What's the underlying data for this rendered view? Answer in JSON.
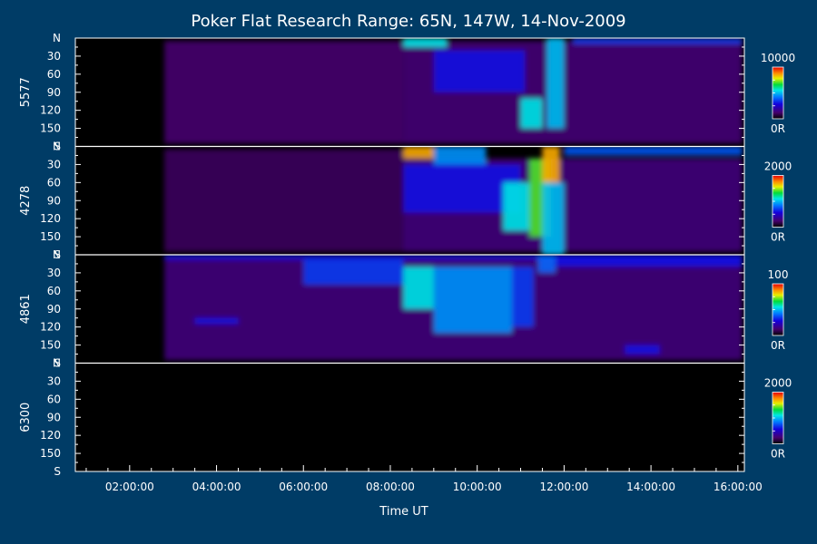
{
  "chart_data": {
    "type": "heatmap",
    "title": "Poker Flat Research Range: 65N, 147W, 14-Nov-2009",
    "xlabel": "Time UT",
    "xlim_hours": [
      0.75,
      16.15
    ],
    "x_ticks": [
      {
        "value": 2,
        "label": "02:00:00"
      },
      {
        "value": 4,
        "label": "04:00:00"
      },
      {
        "value": 6,
        "label": "06:00:00"
      },
      {
        "value": 8,
        "label": "08:00:00"
      },
      {
        "value": 10,
        "label": "10:00:00"
      },
      {
        "value": 12,
        "label": "12:00:00"
      },
      {
        "value": 14,
        "label": "14:00:00"
      },
      {
        "value": 16,
        "label": "16:00:00"
      }
    ],
    "y_ticks": [
      "N",
      "30",
      "60",
      "90",
      "120",
      "150",
      "S"
    ],
    "colorbar_min_label": "0R",
    "panels": [
      {
        "wavelength": "5577",
        "colorbar_max": "10000",
        "blobs": [
          {
            "t0": 2.8,
            "t1": 8.3,
            "y0": 5,
            "y1": 175,
            "i": 0.12
          },
          {
            "t0": 8.3,
            "t1": 16.1,
            "y0": 5,
            "y1": 175,
            "i": 0.13
          },
          {
            "t0": 8.3,
            "t1": 9.3,
            "y0": 0,
            "y1": 15,
            "i": 0.55
          },
          {
            "t0": 9.0,
            "t1": 11.1,
            "y0": 20,
            "y1": 90,
            "i": 0.3
          },
          {
            "t0": 11.0,
            "t1": 11.5,
            "y0": 100,
            "y1": 150,
            "i": 0.55
          },
          {
            "t0": 11.6,
            "t1": 12.0,
            "y0": 0,
            "y1": 150,
            "i": 0.5
          },
          {
            "t0": 12.2,
            "t1": 16.1,
            "y0": 0,
            "y1": 10,
            "i": 0.35
          }
        ]
      },
      {
        "wavelength": "4278",
        "colorbar_max": "2000",
        "blobs": [
          {
            "t0": 2.8,
            "t1": 8.3,
            "y0": 5,
            "y1": 175,
            "i": 0.1
          },
          {
            "t0": 8.3,
            "t1": 16.1,
            "y0": 20,
            "y1": 175,
            "i": 0.14
          },
          {
            "t0": 8.3,
            "t1": 9.0,
            "y0": 0,
            "y1": 20,
            "i": 0.85
          },
          {
            "t0": 9.0,
            "t1": 10.2,
            "y0": 0,
            "y1": 30,
            "i": 0.45
          },
          {
            "t0": 8.3,
            "t1": 11.0,
            "y0": 30,
            "y1": 110,
            "i": 0.3
          },
          {
            "t0": 10.6,
            "t1": 11.2,
            "y0": 60,
            "y1": 140,
            "i": 0.55
          },
          {
            "t0": 11.2,
            "t1": 11.7,
            "y0": 20,
            "y1": 150,
            "i": 0.7
          },
          {
            "t0": 11.5,
            "t1": 11.9,
            "y0": 0,
            "y1": 60,
            "i": 0.85
          },
          {
            "t0": 11.5,
            "t1": 12.0,
            "y0": 60,
            "y1": 180,
            "i": 0.5
          },
          {
            "t0": 12.0,
            "t1": 16.1,
            "y0": 0,
            "y1": 15,
            "i": 0.38
          }
        ]
      },
      {
        "wavelength": "4861",
        "colorbar_max": "100",
        "blobs": [
          {
            "t0": 2.8,
            "t1": 16.1,
            "y0": 5,
            "y1": 175,
            "i": 0.14
          },
          {
            "t0": 2.8,
            "t1": 16.1,
            "y0": 0,
            "y1": 8,
            "i": 0.3
          },
          {
            "t0": 6.0,
            "t1": 8.3,
            "y0": 8,
            "y1": 50,
            "i": 0.35
          },
          {
            "t0": 8.3,
            "t1": 9.0,
            "y0": 20,
            "y1": 90,
            "i": 0.55
          },
          {
            "t0": 9.0,
            "t1": 10.8,
            "y0": 20,
            "y1": 130,
            "i": 0.45
          },
          {
            "t0": 10.8,
            "t1": 11.3,
            "y0": 20,
            "y1": 120,
            "i": 0.35
          },
          {
            "t0": 11.4,
            "t1": 11.8,
            "y0": 0,
            "y1": 30,
            "i": 0.4
          },
          {
            "t0": 11.8,
            "t1": 16.1,
            "y0": 0,
            "y1": 20,
            "i": 0.3
          },
          {
            "t0": 3.5,
            "t1": 4.5,
            "y0": 105,
            "y1": 115,
            "i": 0.3
          },
          {
            "t0": 13.4,
            "t1": 14.2,
            "y0": 150,
            "y1": 165,
            "i": 0.3
          }
        ]
      },
      {
        "wavelength": "6300",
        "colorbar_max": "2000",
        "blobs": []
      }
    ]
  }
}
